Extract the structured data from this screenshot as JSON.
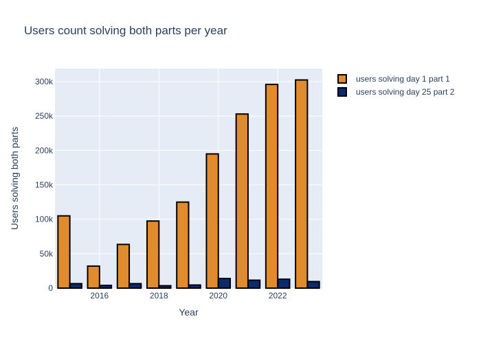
{
  "chart_data": {
    "type": "bar",
    "title": "Users count solving both parts per year",
    "xlabel": "Year",
    "ylabel": "Users solving both parts",
    "x": [
      2015,
      2016,
      2017,
      2018,
      2019,
      2020,
      2021,
      2022,
      2023
    ],
    "x_ticks": [
      "2016",
      "2018",
      "2020",
      "2022"
    ],
    "x_tick_values": [
      2016,
      2018,
      2020,
      2022
    ],
    "y_ticks": [
      "0",
      "50k",
      "100k",
      "150k",
      "200k",
      "250k",
      "300k"
    ],
    "y_tick_values": [
      0,
      50000,
      100000,
      150000,
      200000,
      250000,
      300000
    ],
    "ylim": [
      0,
      319000
    ],
    "xlim": [
      2014.5,
      2023.5
    ],
    "grid": true,
    "legend_position": "top-right",
    "series": [
      {
        "name": "users solving day 1 part 1",
        "color": "#e08b2e",
        "values": [
          105000,
          32000,
          63500,
          97500,
          125000,
          195000,
          253000,
          296000,
          302500
        ]
      },
      {
        "name": "users solving day 25 part 2",
        "color": "#0d2a6e",
        "values": [
          6500,
          4000,
          6500,
          3500,
          4500,
          14000,
          11500,
          13000,
          9500
        ]
      }
    ]
  }
}
